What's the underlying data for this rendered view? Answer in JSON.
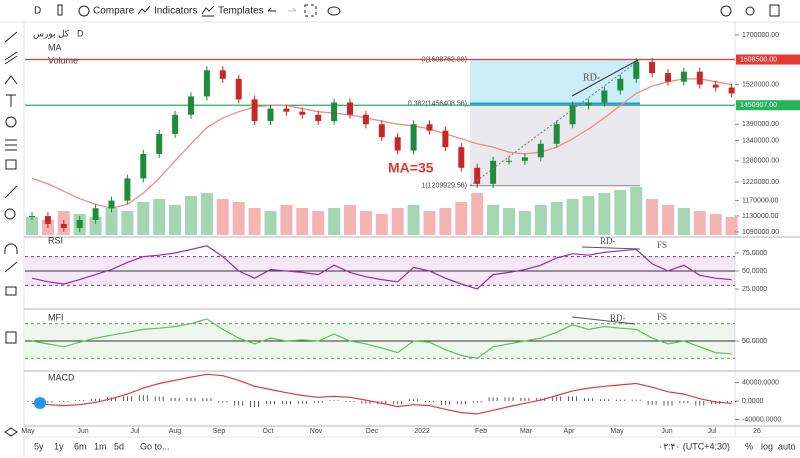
{
  "toolbar": {
    "interval": "D",
    "compare": "Compare",
    "indicators": "Indicators",
    "templates": "Templates"
  },
  "legend": {
    "symbol": "کل بورس",
    "interval": "D",
    "ma": "MA",
    "volume": "Volume"
  },
  "price": {
    "log_scale": true,
    "ylim": [
      1090000,
      1700000
    ],
    "yticks": [
      {
        "value": 1700000,
        "label": "1700000.00"
      },
      {
        "value": 1520000,
        "label": "1520000.00"
      },
      {
        "value": 1390000,
        "label": "1390000.00"
      },
      {
        "value": 1340000,
        "label": "1340000.00"
      },
      {
        "value": 1280000,
        "label": "1280000.00"
      },
      {
        "value": 1220000,
        "label": "1220000.00"
      },
      {
        "value": 1170000,
        "label": "1170000.00"
      },
      {
        "value": 1130000,
        "label": "1130000.00"
      },
      {
        "value": 1090000,
        "label": "1090000.00"
      }
    ],
    "closes": [
      1130000,
      1110000,
      1100000,
      1120000,
      1150000,
      1170000,
      1230000,
      1300000,
      1360000,
      1420000,
      1480000,
      1570000,
      1540000,
      1470000,
      1400000,
      1440000,
      1430000,
      1420000,
      1400000,
      1460000,
      1420000,
      1390000,
      1350000,
      1310000,
      1390000,
      1370000,
      1320000,
      1260000,
      1215000,
      1280000,
      1280000,
      1290000,
      1330000,
      1390000,
      1450000,
      1460000,
      1500000,
      1540000,
      1600000,
      1560000,
      1530000,
      1565000,
      1520000,
      1510000,
      1490000
    ],
    "ma": [
      1230000,
      1215000,
      1195000,
      1175000,
      1160000,
      1150000,
      1160000,
      1190000,
      1230000,
      1280000,
      1330000,
      1380000,
      1410000,
      1430000,
      1445000,
      1450000,
      1450000,
      1440000,
      1430000,
      1425000,
      1420000,
      1410000,
      1400000,
      1390000,
      1385000,
      1375000,
      1360000,
      1345000,
      1330000,
      1320000,
      1305000,
      1300000,
      1305000,
      1320000,
      1345000,
      1375000,
      1410000,
      1450000,
      1490000,
      1515000,
      1530000,
      1540000,
      1540000,
      1530000,
      1520000
    ],
    "volume": [
      30,
      25,
      40,
      35,
      30,
      45,
      40,
      55,
      60,
      50,
      65,
      70,
      60,
      55,
      45,
      40,
      50,
      45,
      40,
      45,
      50,
      40,
      35,
      45,
      50,
      40,
      45,
      55,
      70,
      50,
      45,
      40,
      50,
      55,
      60,
      65,
      70,
      75,
      80,
      60,
      50,
      45,
      40,
      35,
      30
    ],
    "volume_max": 100,
    "hlines": [
      {
        "value": 1608500,
        "label": "1608500.00",
        "color": "#e53935"
      },
      {
        "value": 1450907,
        "label": "1450907.00",
        "color": "#26b35a"
      }
    ],
    "fib": [
      {
        "value": 1608762.88,
        "label": "0(1608762.88)"
      },
      {
        "value": 1456408.56,
        "label": "0.382(1456408.56)"
      },
      {
        "value": 1209929.56,
        "label": "1(1209929.56)"
      }
    ],
    "annotations": {
      "ma": "MA=35",
      "rd": "RD-"
    }
  },
  "rsi": {
    "name": "RSI",
    "ylim": [
      0,
      100
    ],
    "yticks": [
      {
        "value": 75,
        "label": "75.0000"
      },
      {
        "value": 50,
        "label": "50.0000"
      },
      {
        "value": 25,
        "label": "25.0000"
      }
    ],
    "band": [
      70,
      30
    ],
    "values": [
      40,
      35,
      32,
      38,
      45,
      52,
      62,
      70,
      72,
      75,
      80,
      85,
      70,
      50,
      40,
      52,
      50,
      48,
      45,
      58,
      48,
      42,
      38,
      35,
      55,
      50,
      40,
      32,
      25,
      45,
      48,
      52,
      58,
      68,
      74,
      72,
      76,
      78,
      80,
      60,
      50,
      58,
      44,
      40,
      38
    ],
    "annotations": {
      "rd": "RD-",
      "fs": "FS"
    }
  },
  "mfi": {
    "name": "MFI",
    "ylim": [
      0,
      100
    ],
    "yticks": [
      {
        "value": 50,
        "label": "50.0000"
      }
    ],
    "band": [
      80,
      20
    ],
    "values": [
      50,
      45,
      40,
      48,
      55,
      60,
      65,
      70,
      72,
      75,
      80,
      88,
      70,
      55,
      45,
      55,
      50,
      52,
      50,
      62,
      50,
      45,
      38,
      30,
      50,
      48,
      35,
      25,
      20,
      40,
      45,
      50,
      55,
      65,
      78,
      70,
      75,
      72,
      70,
      55,
      45,
      50,
      40,
      30,
      28
    ],
    "annotations": {
      "rd": "RD-",
      "fs": "FS"
    }
  },
  "macd": {
    "name": "MACD",
    "ylim": [
      -52000,
      63000
    ],
    "yticks": [
      {
        "value": 40000,
        "label": "40000.0000"
      },
      {
        "value": 0,
        "label": "0.0000"
      },
      {
        "value": -40000,
        "label": "-40000.0000"
      }
    ],
    "line": [
      -5000,
      -8000,
      -10000,
      -8000,
      -3000,
      5000,
      15000,
      28000,
      38000,
      45000,
      52000,
      58000,
      55000,
      45000,
      32000,
      25000,
      18000,
      12000,
      8000,
      10000,
      8000,
      2000,
      -5000,
      -12000,
      -8000,
      -10000,
      -18000,
      -25000,
      -28000,
      -20000,
      -12000,
      -5000,
      2000,
      12000,
      22000,
      28000,
      32000,
      35000,
      38000,
      30000,
      20000,
      15000,
      5000,
      -2000,
      -5000
    ],
    "histogram": [
      -2000,
      -3000,
      -2000,
      2000,
      5000,
      8000,
      10000,
      13000,
      10000,
      7000,
      7000,
      6000,
      -3000,
      -10000,
      -13000,
      -7000,
      -7000,
      -6000,
      -4000,
      2000,
      -2000,
      -6000,
      -7000,
      -7000,
      4000,
      -2000,
      -8000,
      -7000,
      -3000,
      8000,
      8000,
      7000,
      7000,
      10000,
      10000,
      6000,
      4000,
      3000,
      3000,
      -8000,
      -10000,
      -5000,
      -10000,
      -7000,
      -3000
    ]
  },
  "time_axis": [
    "May",
    "Jun",
    "Jul",
    "Aug",
    "Sep",
    "Oct",
    "Nov",
    "Dec",
    "2022",
    "Feb",
    "Mar",
    "Apr",
    "May",
    "Jun",
    "Jul",
    "26"
  ],
  "bottom_bar": {
    "ranges": [
      "5y",
      "1y",
      "6m",
      "1m",
      "5d"
    ],
    "goto": "Go to...",
    "time": "۰۳:۴۰ (UTC+4:30)",
    "percent": "%",
    "log": "log",
    "auto": "auto"
  }
}
